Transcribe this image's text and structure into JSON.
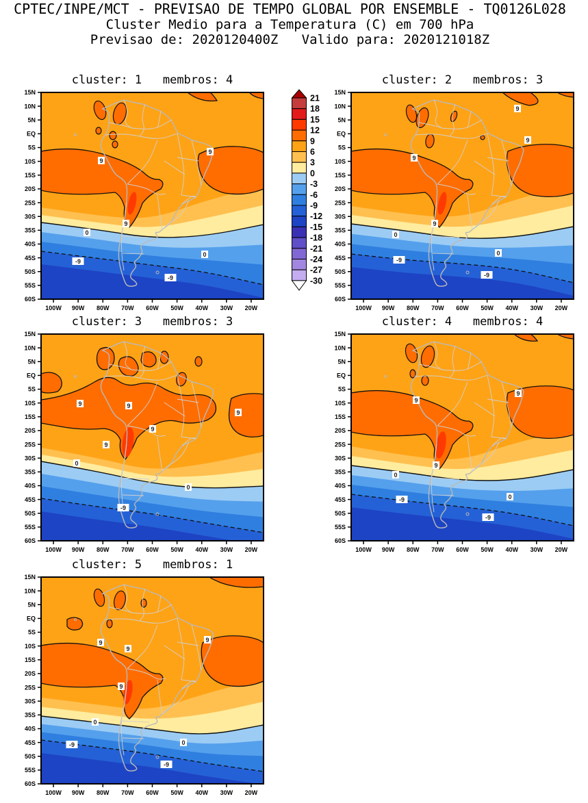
{
  "header": {
    "line1": "CPTEC/INPE/MCT - PREVISAO DE TEMPO GLOBAL POR ENSEMBLE - TQ0126L028",
    "line2": "Cluster Medio para a Temperatura (C) em 700 hPa",
    "line3": "Previsao de: 2020120400Z   Valido para: 2020121018Z"
  },
  "panels": [
    {
      "title": "cluster: 1   membros: 4",
      "cluster": "1",
      "membros": "4"
    },
    {
      "title": "cluster: 2   membros: 3",
      "cluster": "2",
      "membros": "3"
    },
    {
      "title": "cluster: 3   membros: 3",
      "cluster": "3",
      "membros": "3"
    },
    {
      "title": "cluster: 4   membros: 4",
      "cluster": "4",
      "membros": "4"
    },
    {
      "title": "cluster: 5   membros: 1",
      "cluster": "5",
      "membros": "1"
    }
  ],
  "axes": {
    "lat_labels": [
      "15N",
      "10N",
      "5N",
      "EQ",
      "5S",
      "10S",
      "15S",
      "20S",
      "25S",
      "30S",
      "35S",
      "40S",
      "45S",
      "50S",
      "55S",
      "60S"
    ],
    "lon_labels": [
      "100W",
      "90W",
      "80W",
      "70W",
      "60W",
      "50W",
      "40W",
      "30W",
      "20W"
    ]
  },
  "contours": {
    "warm": "9",
    "zero": "0",
    "cold": "-9"
  },
  "colorbar": {
    "labels": [
      "21",
      "18",
      "15",
      "12",
      "9",
      "6",
      "3",
      "0",
      "-3",
      "-6",
      "-9",
      "-12",
      "-15",
      "-18",
      "-21",
      "-24",
      "-27",
      "-30"
    ],
    "colors": [
      "#C43C3C",
      "#E31A1A",
      "#FF3A00",
      "#FF6D00",
      "#FFA316",
      "#FFC050",
      "#FFEC9E",
      "#9CCCF4",
      "#55A0EC",
      "#2F7FE0",
      "#2561D6",
      "#1D44C4",
      "#3A30B4",
      "#5F4FC8",
      "#8268D4",
      "#A287E0",
      "#C3ADF0"
    ],
    "arrow_top_color": "#A80000",
    "arrow_bottom_color": "#FFFFFF"
  },
  "chart_data": {
    "type": "heatmap",
    "subtype": "filled-contour-map-ensemble-clusters",
    "title": "CPTEC/INPE/MCT - PREVISAO DE TEMPO GLOBAL POR ENSEMBLE - TQ0126L028",
    "subtitle": "Cluster Medio para a Temperatura (C) em 700 hPa",
    "init_time": "2020120400Z",
    "valid_time": "2020121018Z",
    "model": "TQ0126L028",
    "variable": "Temperatura",
    "units": "C",
    "level_hPa": 700,
    "map_extent": {
      "lon_west": "105W",
      "lon_east": "15W",
      "lat_south": "60S",
      "lat_north": "15N"
    },
    "shading_interval_C": 3,
    "line_contour_interval_C": 9,
    "labeled_line_contours_C": [
      9,
      0,
      -9
    ],
    "colorbar_levels_C": [
      21,
      18,
      15,
      12,
      9,
      6,
      3,
      0,
      -3,
      -6,
      -9,
      -12,
      -15,
      -18,
      -21,
      -24,
      -27,
      -30
    ],
    "panels": [
      {
        "cluster": 1,
        "membros": 4
      },
      {
        "cluster": 2,
        "membros": 3
      },
      {
        "cluster": 3,
        "membros": 3
      },
      {
        "cluster": 4,
        "membros": 4
      },
      {
        "cluster": 5,
        "membros": 1
      }
    ],
    "legend_position": "center-top-between-first-two-panels",
    "notes": "Five cluster-mean 700 hPa temperature maps over South America; orange band ~6-9C covers tropics, 9-12C blobs along Andes/Amazon/Atlantic, cold blues south of ~38S, dashed -9C contour near 45-50S."
  }
}
